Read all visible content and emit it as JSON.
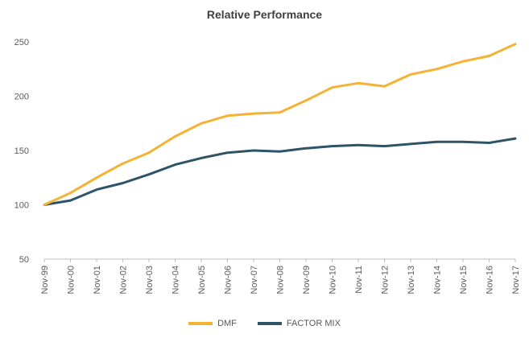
{
  "chart_data": {
    "type": "line",
    "title": "Relative Performance",
    "xlabel": "",
    "ylabel": "",
    "ylim": [
      50,
      250
    ],
    "y_ticks": [
      50,
      100,
      150,
      200,
      250
    ],
    "grid": false,
    "legend_position": "bottom",
    "categories": [
      "Nov-99",
      "Nov-00",
      "Nov-01",
      "Nov-02",
      "Nov-03",
      "Nov-04",
      "Nov-05",
      "Nov-06",
      "Nov-07",
      "Nov-08",
      "Nov-09",
      "Nov-10",
      "Nov-11",
      "Nov-12",
      "Nov-13",
      "Nov-14",
      "Nov-15",
      "Nov-16",
      "Nov-17"
    ],
    "series": [
      {
        "name": "DMF",
        "color": "#F5B335",
        "values": [
          100,
          111,
          125,
          138,
          148,
          163,
          175,
          182,
          184,
          185,
          196,
          208,
          212,
          209,
          220,
          225,
          232,
          237,
          248
        ]
      },
      {
        "name": "FACTOR MIX",
        "color": "#2E5469",
        "values": [
          100,
          104,
          114,
          120,
          128,
          137,
          143,
          148,
          150,
          149,
          152,
          154,
          155,
          154,
          156,
          158,
          158,
          157,
          161
        ]
      }
    ]
  }
}
